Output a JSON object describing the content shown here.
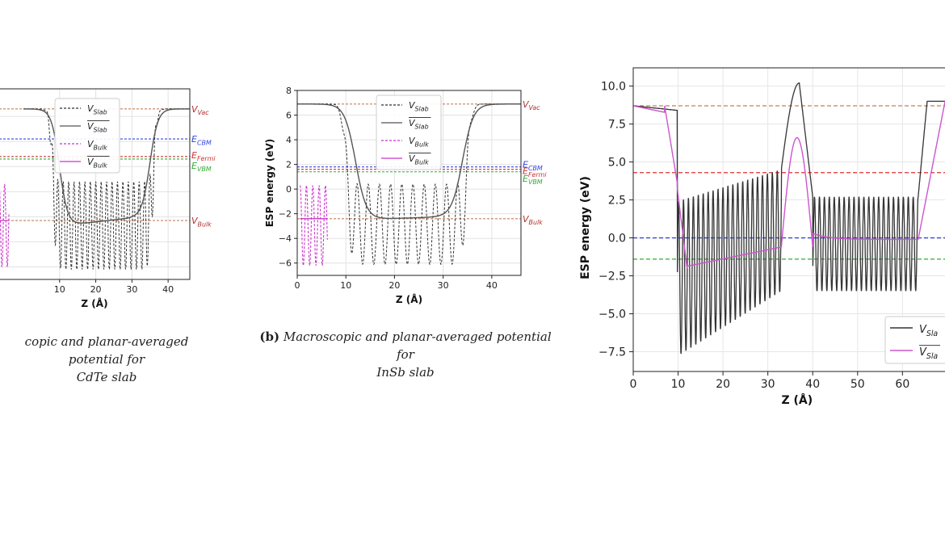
{
  "slide_mark": "y",
  "captions": {
    "a": {
      "text": "copic and planar-averaged potential for",
      "text2": "CdTe slab"
    },
    "b": {
      "tag": "(b)",
      "text": "Macroscopic and planar-averaged potential for",
      "text2": "InSb slab"
    }
  },
  "colors": {
    "vslab": "#444444",
    "vbulk": "#cc33cc",
    "vac": "#c0805c",
    "cbm": "#3344dd",
    "fermi": "#cc3333",
    "vbm": "#33aa33"
  },
  "chart_data": [
    {
      "id": "a",
      "type": "line",
      "title": "",
      "xlabel": "Z (Å)",
      "ylabel": "",
      "xlim": [
        -6.7,
        46
      ],
      "ylim": [
        -7,
        8.2
      ],
      "xticks": [
        10,
        20,
        30,
        40
      ],
      "tick_labels": {
        "x": [
          "10",
          "20",
          "30",
          "40"
        ]
      },
      "legend": {
        "position": "top-center",
        "entries": [
          "V_Slab",
          "V̄_Slab",
          "V_Bulk",
          "V̄_Bulk"
        ]
      },
      "legend_labels": {
        "vslab": "VSlab",
        "vslab_avg": "VSlab",
        "vbulk": "VBulk",
        "vbulk_avg": "VBulk"
      },
      "level_labels": {
        "vac": "VVac",
        "cbm": "ECBM",
        "fermi": "EFermi",
        "vbm": "EVBM",
        "bulk": "VBulk"
      },
      "levels": {
        "vac": 6.6,
        "cbm": 4.2,
        "fermi": 2.8,
        "vbm": 2.6,
        "bulk": -2.3
      },
      "slab": {
        "start": 0,
        "left_edge": 8,
        "right_edge": 36,
        "end": 46,
        "vac": 6.6,
        "bulk": -2.3,
        "avg_left": -2.8,
        "avg_right": -1.9,
        "osc_period": 1.5,
        "osc_max": 0.8,
        "osc_min": -6.2
      },
      "bulk": {
        "x_start": -6.7,
        "x_end": -4,
        "period": 1.5,
        "max": 0.6,
        "min": -6.0
      }
    },
    {
      "id": "b",
      "type": "line",
      "title": "",
      "xlabel": "Z (Å)",
      "ylabel": "ESP energy (eV)",
      "xlim": [
        0,
        46
      ],
      "ylim": [
        -7,
        8
      ],
      "xticks": [
        0,
        10,
        20,
        30,
        40
      ],
      "yticks": [
        -6,
        -4,
        -2,
        0,
        2,
        4,
        6,
        8
      ],
      "tick_labels": {
        "x": [
          "0",
          "10",
          "20",
          "30",
          "40"
        ],
        "y": [
          "−6",
          "−4",
          "−2",
          "0",
          "2",
          "4",
          "6",
          "8"
        ]
      },
      "legend": {
        "position": "top-center",
        "entries": [
          "V_Slab",
          "V̄_Slab",
          "V_Bulk",
          "V̄_Bulk"
        ]
      },
      "legend_labels": {
        "vslab": "VSlab",
        "vslab_avg": "VSlab",
        "vbulk": "VBulk",
        "vbulk_avg": "VBulk"
      },
      "level_labels": {
        "vac": "VVac",
        "cbm": "ECBM",
        "fermi": "EFermi",
        "vbm": "EVBM",
        "bulk": "VBulk"
      },
      "levels": {
        "vac": 6.9,
        "cbm": 1.8,
        "fermi": 1.6,
        "vbm": 1.4,
        "bulk": -2.4
      },
      "slab": {
        "start": 0,
        "left_edge": 10,
        "right_edge": 35,
        "end": 46,
        "vac": 6.9,
        "bulk": -2.4,
        "avg_left": -2.5,
        "avg_right": -2.2,
        "osc_period": 2.3,
        "osc_max": 0.4,
        "osc_min": -6.1
      },
      "bulk": {
        "x_start": 0.6,
        "x_end": 6.2,
        "period": 1.3,
        "max": 0.3,
        "min": -6.2
      }
    },
    {
      "id": "c",
      "type": "line",
      "title": "",
      "xlabel": "Z (Å)",
      "ylabel": "ESP energy (eV)",
      "xlim": [
        0,
        72
      ],
      "ylim": [
        -8.8,
        11.2
      ],
      "xticks": [
        0,
        10,
        20,
        30,
        40,
        50,
        60
      ],
      "yticks": [
        -7.5,
        -5.0,
        -2.5,
        0.0,
        2.5,
        5.0,
        7.5,
        10.0
      ],
      "tick_labels": {
        "x": [
          "0",
          "10",
          "20",
          "30",
          "40",
          "50",
          "60"
        ],
        "y": [
          "−7.5",
          "−5.0",
          "−2.5",
          "0.0",
          "2.5",
          "5.0",
          "7.5",
          "10.0"
        ]
      },
      "legend": {
        "position": "bottom-right",
        "entries": [
          "V_Slab",
          "V̄_Slab"
        ]
      },
      "legend_labels": {
        "vslab": "VSla",
        "vslab_avg": "VSla"
      },
      "levels": {
        "vac": 8.7,
        "fermi": 4.3,
        "cbm": 0.0,
        "vbm": -1.4
      },
      "series": [
        {
          "name": "V_Slab",
          "points": "computed from shape params"
        }
      ],
      "shape": {
        "vac": 8.7,
        "edge1": 9.8,
        "region1_end": 33,
        "peak": 10.2,
        "peak_x": 37,
        "region2_start": 40,
        "region2_end": 63.5,
        "right_vac": 9.0,
        "r1_min_start": -7.8,
        "r1_max_start": 2.4,
        "r1_max_end": 4.5,
        "r1_min_end": -3.5,
        "r2_max": 2.7,
        "r2_min": -3.5,
        "period1": 1.1,
        "period2": 1.1,
        "avg_r1_start": -2.0,
        "avg_r1_end": -0.6,
        "avg_peak": 6.6,
        "avg_r2": -0.1
      }
    }
  ]
}
